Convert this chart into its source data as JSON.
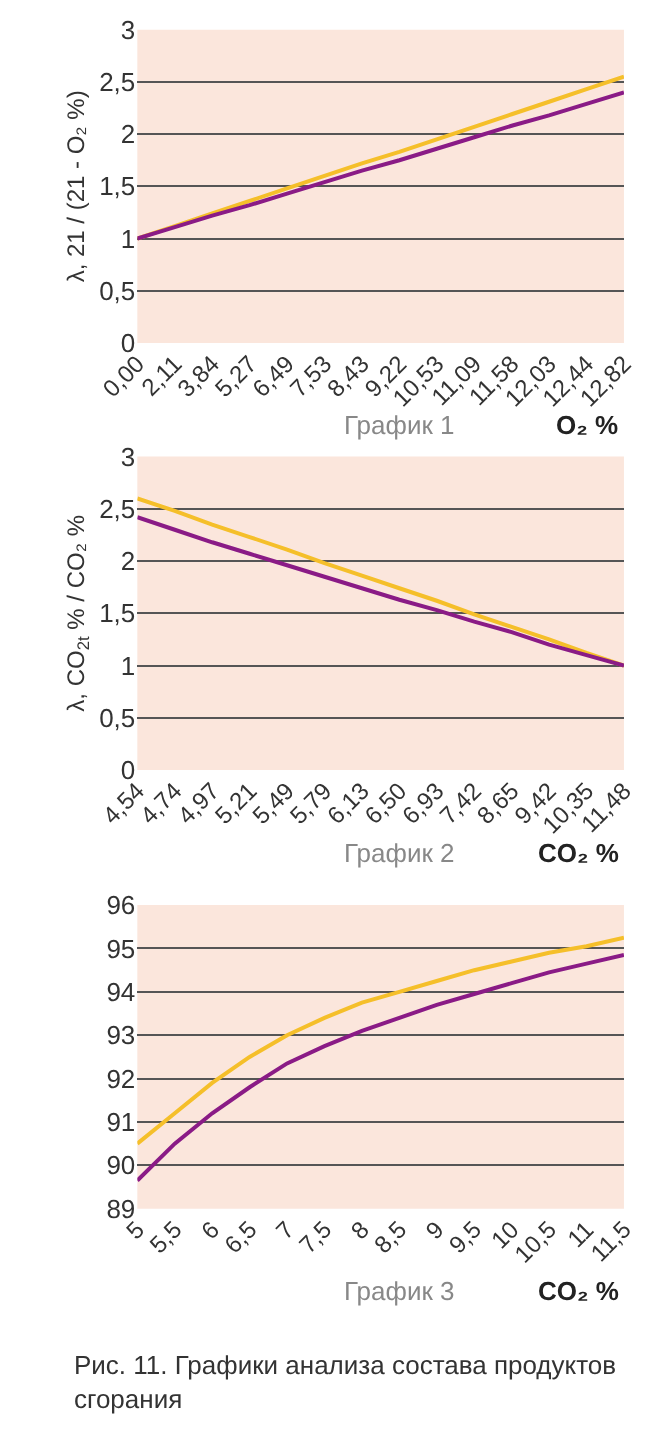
{
  "chart_data": [
    {
      "type": "line",
      "ylabel": "λ, 21 / (21 - O₂ %)",
      "xlabel": "O₂ %",
      "annotations": [
        "График 1"
      ],
      "categories": [
        "0,00",
        "2,11",
        "3,84",
        "5,27",
        "6,49",
        "7,53",
        "8,43",
        "9,22",
        "10,53",
        "11,09",
        "11,58",
        "12,03",
        "12,44",
        "12,82"
      ],
      "series": [
        {
          "color": "#f5bf2a",
          "values": [
            1.0,
            1.12,
            1.24,
            1.36,
            1.48,
            1.6,
            1.72,
            1.83,
            1.95,
            2.07,
            2.19,
            2.31,
            2.43,
            2.55
          ]
        },
        {
          "color": "#8a1b86",
          "values": [
            1.0,
            1.11,
            1.22,
            1.32,
            1.43,
            1.54,
            1.65,
            1.75,
            1.86,
            1.97,
            2.08,
            2.18,
            2.29,
            2.4
          ]
        }
      ],
      "ylim": [
        0,
        3
      ],
      "yticks": [
        0,
        {
          "value": 0.5,
          "label": "0,5"
        },
        1,
        {
          "value": 1.5,
          "label": "1,5"
        },
        2,
        {
          "value": 2.5,
          "label": "2,5"
        },
        3
      ],
      "grid": "y"
    },
    {
      "type": "line",
      "ylabel": "λ, CO$_{2t}$ % / CO₂ %",
      "xlabel": "CO₂ %",
      "annotations": [
        "График 2"
      ],
      "categories": [
        "4,54",
        "4,74",
        "4,97",
        "5,21",
        "5,49",
        "5,79",
        "6,13",
        "6,50",
        "6,93",
        "7,42",
        "8,65",
        "9,42",
        "10,35",
        "11,48"
      ],
      "series": [
        {
          "color": "#f5bf2a",
          "values": [
            2.6,
            2.48,
            2.35,
            2.23,
            2.11,
            1.98,
            1.86,
            1.74,
            1.62,
            1.49,
            1.37,
            1.25,
            1.12,
            1.0
          ]
        },
        {
          "color": "#8a1b86",
          "values": [
            2.42,
            2.3,
            2.18,
            2.07,
            1.96,
            1.85,
            1.74,
            1.63,
            1.53,
            1.42,
            1.32,
            1.2,
            1.1,
            1.0
          ]
        }
      ],
      "ylim": [
        0,
        3
      ],
      "yticks": [
        0,
        {
          "value": 0.5,
          "label": "0,5"
        },
        1,
        {
          "value": 1.5,
          "label": "1,5"
        },
        2,
        {
          "value": 2.5,
          "label": "2,5"
        },
        3
      ],
      "grid": "y"
    },
    {
      "type": "line",
      "xlabel": "CO₂ %",
      "annotations": [
        "График 3",
        "Рис. 11. Графики анализа состава продуктов сгорания"
      ],
      "categories": [
        "5",
        "5,5",
        "6",
        "6,5",
        "7",
        "7,5",
        "8",
        "8,5",
        "9",
        "9,5",
        "10",
        "10,5",
        "11",
        "11,5"
      ],
      "series": [
        {
          "color": "#f5bf2a",
          "values": [
            90.5,
            91.2,
            91.9,
            92.5,
            93.0,
            93.4,
            93.75,
            94.0,
            94.25,
            94.5,
            94.7,
            94.9,
            95.05,
            95.25
          ]
        },
        {
          "color": "#8a1b86",
          "values": [
            89.65,
            90.5,
            91.2,
            91.8,
            92.35,
            92.75,
            93.1,
            93.4,
            93.7,
            93.95,
            94.2,
            94.45,
            94.65,
            94.85
          ]
        }
      ],
      "ylim": [
        89,
        96
      ],
      "yticks": [
        89,
        90,
        91,
        92,
        93,
        94,
        95,
        96
      ],
      "grid": "y"
    }
  ]
}
